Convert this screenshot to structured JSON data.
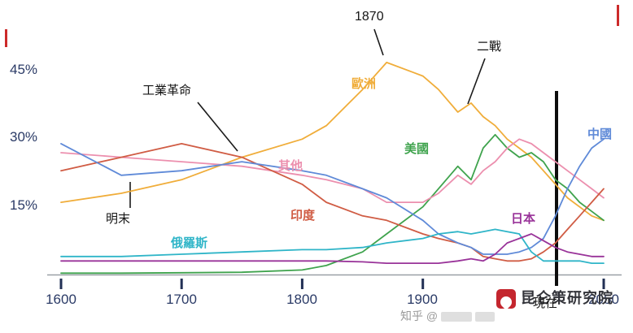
{
  "chart_data": {
    "type": "line",
    "title": "",
    "xlabel": "",
    "ylabel": "",
    "xlim": [
      1600,
      2050
    ],
    "ylim": [
      0,
      50
    ],
    "grid": false,
    "legend_position": "inline-labels",
    "x": [
      1600,
      1650,
      1700,
      1750,
      1800,
      1820,
      1850,
      1870,
      1900,
      1913,
      1929,
      1940,
      1950,
      1960,
      1970,
      1980,
      1990,
      2000,
      2010,
      2020,
      2030,
      2040,
      2050
    ],
    "x_tick_years": [
      1600,
      1700,
      1800,
      1900,
      2050
    ],
    "x_tick_labels": [
      "1600",
      "1700",
      "1800",
      "1900",
      "2050"
    ],
    "y_ticks": [
      45,
      30,
      15
    ],
    "y_tick_labels": [
      "45%",
      "30%",
      "15%"
    ],
    "series": [
      {
        "name": "歐洲",
        "color": "#f0ad3a",
        "values": [
          16,
          18,
          21,
          26,
          30,
          33,
          41,
          47,
          44,
          41,
          36,
          38,
          35,
          33,
          30,
          28,
          26,
          23,
          20,
          17,
          15,
          13,
          12
        ]
      },
      {
        "name": "美國",
        "color": "#3fa34d",
        "values": [
          0.3,
          0.3,
          0.4,
          0.5,
          1,
          2,
          5,
          9,
          15,
          19,
          24,
          21,
          28,
          31,
          28,
          26,
          27,
          25,
          21,
          19,
          16,
          14,
          12
        ]
      },
      {
        "name": "其他",
        "color": "#ec8fae",
        "values": [
          27,
          26,
          25,
          24,
          22,
          21,
          19,
          16,
          16,
          18,
          22,
          20,
          23,
          25,
          28,
          30,
          29,
          27,
          25,
          23,
          21,
          19,
          17
        ]
      },
      {
        "name": "印度",
        "color": "#d05c44",
        "values": [
          23,
          26,
          29,
          26,
          20,
          16,
          13,
          12,
          9,
          8,
          7,
          6,
          4,
          3.5,
          3,
          3,
          3.5,
          5,
          7,
          10,
          13,
          16,
          19
        ]
      },
      {
        "name": "中國",
        "color": "#5f8ad8",
        "values": [
          29,
          22,
          23,
          25,
          23,
          22,
          19,
          17,
          12,
          9,
          7,
          6,
          4.5,
          4.5,
          4.5,
          5,
          6,
          8,
          13,
          19,
          24,
          28,
          30
        ]
      },
      {
        "name": "俄羅斯",
        "color": "#2fb5c8",
        "values": [
          4,
          4,
          4.5,
          5,
          5.5,
          5.5,
          6,
          7,
          8,
          9,
          9.5,
          9,
          9.5,
          10,
          9.5,
          9,
          5,
          3,
          3,
          3,
          3,
          2.5,
          2.5
        ]
      },
      {
        "name": "日本",
        "color": "#993399",
        "values": [
          3,
          3,
          3,
          3,
          3,
          3,
          2.8,
          2.5,
          2.5,
          2.5,
          3,
          3.5,
          3,
          4.5,
          7,
          8,
          9,
          7.5,
          6,
          5,
          4.5,
          4,
          4
        ]
      }
    ],
    "annotations": {
      "peak_year": "1870",
      "wwii": "二戰",
      "industrial_revolution": "工業革命",
      "late_ming": "明末",
      "now": "現在"
    }
  },
  "watermark": {
    "zhihu_prefix": "知乎 @",
    "kunlun": "昆仑策研究院"
  }
}
